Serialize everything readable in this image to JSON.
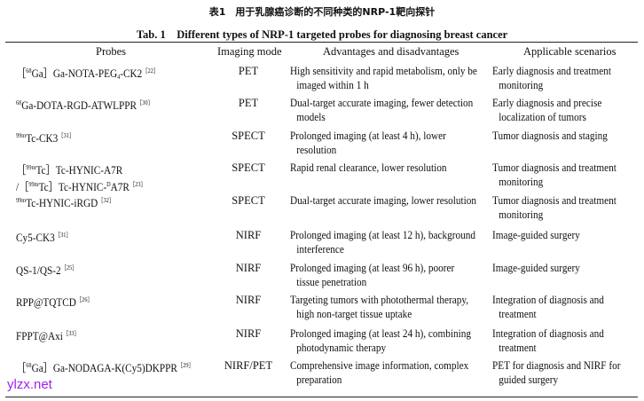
{
  "title_cn": "表1　用于乳腺癌诊断的不同种类的NRP-1靶向探针",
  "title_en": "Tab. 1　Different types of NRP-1 targeted probes for diagnosing breast cancer",
  "headers": [
    "Probes",
    "Imaging mode",
    "Advantages and disadvantages",
    "Applicable scenarios"
  ],
  "rows": [
    {
      "probe": [
        {
          "t": "［"
        },
        {
          "t": "68",
          "s": "sup"
        },
        {
          "t": "Ga］Ga-NOTA-PEG"
        },
        {
          "t": "4",
          "s": "sub"
        },
        {
          "t": "-CK2"
        },
        {
          "t": "［22］",
          "s": "sup"
        }
      ],
      "mode": "PET",
      "adv": [
        "High sensitivity and rapid metabolism, only be",
        "imaged within 1 h"
      ],
      "app": [
        "Early diagnosis and treatment",
        "monitoring"
      ]
    },
    {
      "probe": [
        {
          "t": "68",
          "s": "sup"
        },
        {
          "t": "Ga-DOTA-RGD-ATWLPPR"
        },
        {
          "t": "［30］",
          "s": "sup"
        }
      ],
      "mode": "PET",
      "adv": [
        "Dual-target accurate imaging, fewer detection",
        "models"
      ],
      "app": [
        "Early diagnosis and precise",
        "localization of tumors"
      ]
    },
    {
      "probe": [
        {
          "t": "99m",
          "s": "sup"
        },
        {
          "t": "Tc-CK3"
        },
        {
          "t": "［31］",
          "s": "sup"
        }
      ],
      "mode": "SPECT",
      "adv": [
        "Prolonged imaging (at least 4 h), lower",
        "resolution"
      ],
      "app": [
        "Tumor diagnosis and staging"
      ]
    },
    {
      "probe": [
        {
          "t": "［"
        },
        {
          "t": "99m",
          "s": "sup"
        },
        {
          "t": "Tc］Tc-HYNIC-A7R"
        },
        {
          "t": "\n/［"
        },
        {
          "t": "99m",
          "s": "sup"
        },
        {
          "t": "Tc］Tc-HYNIC-"
        },
        {
          "t": "D",
          "s": "sup"
        },
        {
          "t": "A7R"
        },
        {
          "t": "［23］",
          "s": "sup"
        }
      ],
      "mode": "SPECT",
      "adv": [
        "Rapid renal clearance, lower resolution"
      ],
      "app": [
        "Tumor diagnosis and treatment",
        "monitoring"
      ]
    },
    {
      "probe": [
        {
          "t": "99m",
          "s": "sup"
        },
        {
          "t": "Tc-HYNIC-iRGD"
        },
        {
          "t": "［32］",
          "s": "sup"
        }
      ],
      "mode": "SPECT",
      "adv": [
        "Dual-target accurate imaging, lower resolution"
      ],
      "app": [
        "Tumor diagnosis and treatment",
        "monitoring"
      ]
    },
    {
      "probe": [
        {
          "t": "Cy5-CK3"
        },
        {
          "t": "［31］",
          "s": "sup"
        }
      ],
      "mode": "NIRF",
      "adv": [
        "Prolonged imaging (at least 12 h), background",
        "interference"
      ],
      "app": [
        "Image-guided surgery"
      ]
    },
    {
      "probe": [
        {
          "t": "QS-1/QS-2"
        },
        {
          "t": "［25］",
          "s": "sup"
        }
      ],
      "mode": "NIRF",
      "adv": [
        "Prolonged imaging (at least 96 h), poorer",
        "tissue penetration"
      ],
      "app": [
        "Image-guided surgery"
      ]
    },
    {
      "probe": [
        {
          "t": "RPP@TQTCD"
        },
        {
          "t": "［26］",
          "s": "sup"
        }
      ],
      "mode": "NIRF",
      "adv": [
        "Targeting tumors with photothermal therapy,",
        "high non-target tissue uptake"
      ],
      "app": [
        "Integration of diagnosis and",
        "treatment"
      ]
    },
    {
      "probe": [
        {
          "t": "FPPT@Axi"
        },
        {
          "t": "［33］",
          "s": "sup"
        }
      ],
      "mode": "NIRF",
      "adv": [
        "Prolonged imaging (at least 24 h), combining",
        "photodynamic therapy"
      ],
      "app": [
        "Integration of diagnosis and",
        "treatment"
      ]
    },
    {
      "probe": [
        {
          "t": "［"
        },
        {
          "t": "68",
          "s": "sup"
        },
        {
          "t": "Ga］Ga-NODAGA-K(Cy5)DKPPR"
        },
        {
          "t": "［29］",
          "s": "sup"
        }
      ],
      "mode": "NIRF/PET",
      "adv": [
        "Comprehensive image information, complex",
        "preparation"
      ],
      "app": [
        "PET for diagnosis and NIRF for",
        "guided surgery"
      ]
    }
  ],
  "watermark": "ylzx.net"
}
